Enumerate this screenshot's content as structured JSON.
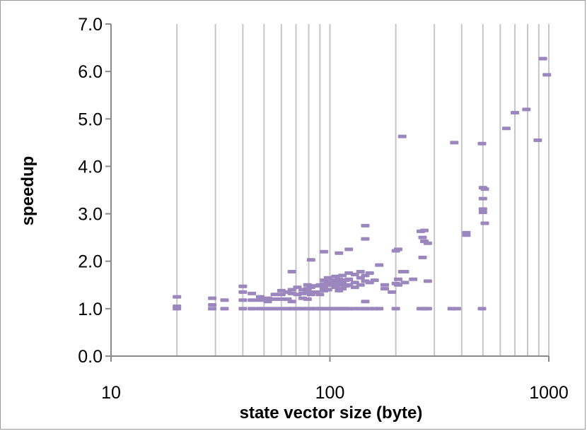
{
  "chart_data": {
    "type": "scatter",
    "title": "",
    "xlabel": "state vector size (byte)",
    "ylabel": "speedup",
    "xscale": "log",
    "xlim": [
      10,
      1000
    ],
    "ylim": [
      0,
      7
    ],
    "xticks": [
      "10",
      "100",
      "1000"
    ],
    "yticks": [
      "0.0",
      "1.0",
      "2.0",
      "3.0",
      "4.0",
      "5.0",
      "6.0",
      "7.0"
    ],
    "grid": "vertical major and minor log gridlines",
    "legend": "none",
    "marker": "short horizontal dash",
    "colors": {
      "marker": "#9b86bd",
      "grid": "#c6c6c6",
      "axis": "#8a8a8a"
    },
    "series": [
      {
        "points": [
          [
            20,
            1.25
          ],
          [
            20,
            1.05
          ],
          [
            20,
            1.0
          ],
          [
            29,
            1.22
          ],
          [
            29,
            1.08
          ],
          [
            29,
            1.0
          ],
          [
            33,
            1.18
          ],
          [
            33,
            1.0
          ],
          [
            40,
            1.47
          ],
          [
            40,
            1.35
          ],
          [
            40,
            1.18
          ],
          [
            40,
            1.0
          ],
          [
            44,
            1.32
          ],
          [
            44,
            1.18
          ],
          [
            44,
            1.0
          ],
          [
            48,
            1.25
          ],
          [
            48,
            1.18
          ],
          [
            48,
            1.0
          ],
          [
            52,
            1.22
          ],
          [
            52,
            1.15
          ],
          [
            52,
            1.0
          ],
          [
            56,
            1.3
          ],
          [
            56,
            1.2
          ],
          [
            56,
            1.0
          ],
          [
            60,
            1.38
          ],
          [
            60,
            1.3
          ],
          [
            60,
            1.2
          ],
          [
            60,
            1.0
          ],
          [
            64,
            1.35
          ],
          [
            64,
            1.2
          ],
          [
            64,
            1.0
          ],
          [
            67,
            1.78
          ],
          [
            67,
            1.4
          ],
          [
            67,
            1.32
          ],
          [
            67,
            1.15
          ],
          [
            67,
            1.0
          ],
          [
            71,
            1.45
          ],
          [
            71,
            1.3
          ],
          [
            71,
            1.0
          ],
          [
            75,
            1.4
          ],
          [
            75,
            1.32
          ],
          [
            75,
            1.22
          ],
          [
            75,
            1.0
          ],
          [
            79,
            1.5
          ],
          [
            79,
            1.42
          ],
          [
            79,
            1.35
          ],
          [
            79,
            1.2
          ],
          [
            79,
            1.0
          ],
          [
            82,
            2.03
          ],
          [
            82,
            1.45
          ],
          [
            82,
            1.3
          ],
          [
            82,
            1.0
          ],
          [
            86,
            1.48
          ],
          [
            86,
            1.35
          ],
          [
            86,
            1.0
          ],
          [
            90,
            1.5
          ],
          [
            90,
            1.3
          ],
          [
            90,
            1.0
          ],
          [
            94,
            2.2
          ],
          [
            94,
            1.6
          ],
          [
            94,
            1.52
          ],
          [
            94,
            1.45
          ],
          [
            94,
            1.38
          ],
          [
            94,
            1.0
          ],
          [
            98,
            1.65
          ],
          [
            98,
            1.55
          ],
          [
            98,
            1.4
          ],
          [
            98,
            1.0
          ],
          [
            102,
            1.6
          ],
          [
            102,
            1.5
          ],
          [
            102,
            1.0
          ],
          [
            106,
            1.68
          ],
          [
            106,
            1.55
          ],
          [
            106,
            1.45
          ],
          [
            106,
            1.0
          ],
          [
            110,
            2.17
          ],
          [
            110,
            1.62
          ],
          [
            110,
            1.5
          ],
          [
            110,
            1.38
          ],
          [
            110,
            1.0
          ],
          [
            114,
            1.7
          ],
          [
            114,
            1.55
          ],
          [
            114,
            1.42
          ],
          [
            114,
            1.0
          ],
          [
            118,
            1.6
          ],
          [
            118,
            1.48
          ],
          [
            118,
            1.0
          ],
          [
            122,
            2.25
          ],
          [
            122,
            1.75
          ],
          [
            122,
            1.62
          ],
          [
            122,
            1.5
          ],
          [
            122,
            1.0
          ],
          [
            130,
            1.72
          ],
          [
            130,
            1.55
          ],
          [
            130,
            1.45
          ],
          [
            130,
            1.0
          ],
          [
            138,
            1.78
          ],
          [
            138,
            1.65
          ],
          [
            138,
            1.5
          ],
          [
            138,
            1.0
          ],
          [
            145,
            2.75
          ],
          [
            145,
            2.47
          ],
          [
            145,
            1.7
          ],
          [
            145,
            1.58
          ],
          [
            145,
            1.15
          ],
          [
            145,
            1.0
          ],
          [
            152,
            1.75
          ],
          [
            152,
            1.55
          ],
          [
            152,
            1.0
          ],
          [
            160,
            1.6
          ],
          [
            160,
            1.0
          ],
          [
            168,
            1.92
          ],
          [
            168,
            1.0
          ],
          [
            178,
            1.5
          ],
          [
            178,
            1.42
          ],
          [
            192,
            1.35
          ],
          [
            200,
            2.22
          ],
          [
            200,
            1.53
          ],
          [
            200,
            1.0
          ],
          [
            205,
            2.25
          ],
          [
            205,
            1.62
          ],
          [
            205,
            1.5
          ],
          [
            214,
            4.63
          ],
          [
            214,
            1.78
          ],
          [
            220,
            1.78
          ],
          [
            220,
            1.55
          ],
          [
            240,
            1.62
          ],
          [
            260,
            2.63
          ],
          [
            260,
            1.0
          ],
          [
            265,
            2.5
          ],
          [
            265,
            2.08
          ],
          [
            270,
            2.65
          ],
          [
            270,
            2.42
          ],
          [
            270,
            1.0
          ],
          [
            280,
            2.38
          ],
          [
            280,
            1.58
          ],
          [
            280,
            1.0
          ],
          [
            360,
            1.0
          ],
          [
            370,
            4.5
          ],
          [
            380,
            1.0
          ],
          [
            420,
            2.6
          ],
          [
            420,
            2.55
          ],
          [
            495,
            4.48
          ],
          [
            495,
            1.0
          ],
          [
            500,
            3.55
          ],
          [
            500,
            3.32
          ],
          [
            500,
            3.1
          ],
          [
            500,
            3.03
          ],
          [
            510,
            3.52
          ],
          [
            510,
            2.8
          ],
          [
            640,
            4.8
          ],
          [
            700,
            5.13
          ],
          [
            790,
            5.2
          ],
          [
            890,
            4.55
          ],
          [
            940,
            6.27
          ],
          [
            980,
            5.93
          ]
        ]
      }
    ]
  }
}
